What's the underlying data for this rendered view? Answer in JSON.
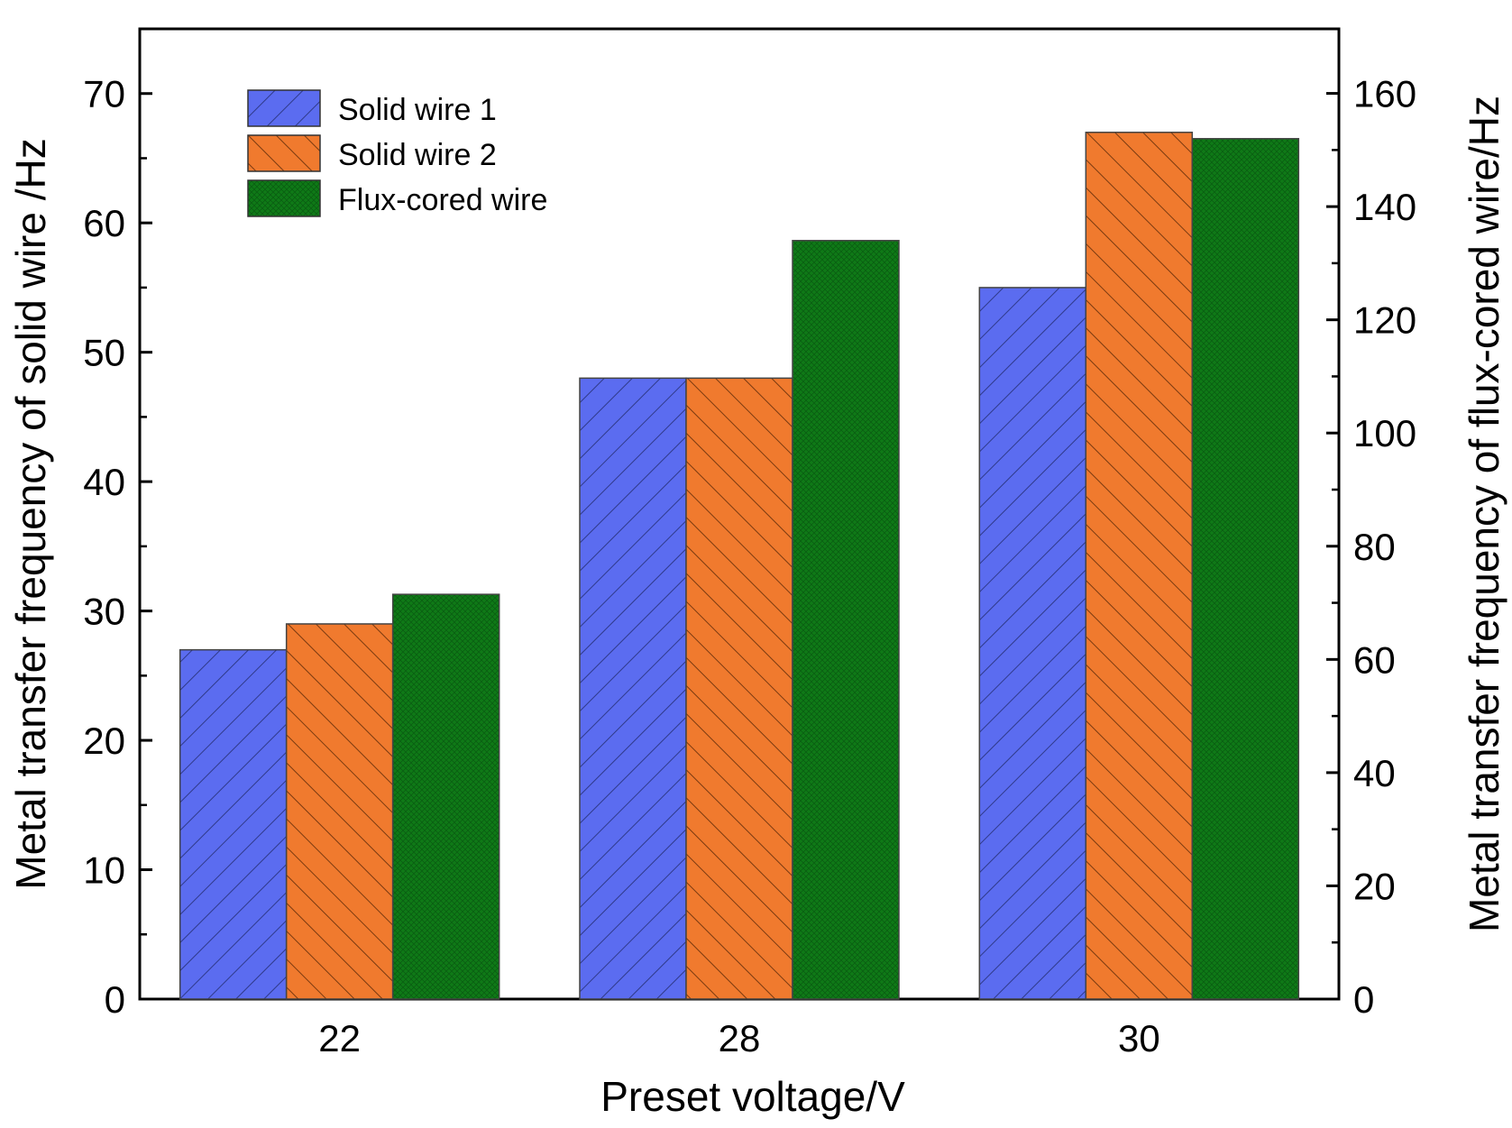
{
  "chart_data": {
    "type": "bar",
    "categories": [
      "22",
      "28",
      "30"
    ],
    "xlabel": "Preset voltage/V",
    "ylabel": "Metal transfer frequency of solid wire /Hz",
    "y2label": "Metal transfer frequency of flux-cored wire/Hz",
    "ylim": [
      0,
      75
    ],
    "y2lim": [
      0,
      171.4
    ],
    "yticks": [
      "0",
      "10",
      "20",
      "30",
      "40",
      "50",
      "60",
      "70"
    ],
    "y2ticks": [
      "0",
      "20",
      "40",
      "60",
      "80",
      "100",
      "120",
      "140",
      "160"
    ],
    "series": [
      {
        "name": "Solid wire 1",
        "axis": "left",
        "values": [
          27,
          48,
          55
        ],
        "color": "#5b6cf0",
        "hatch": "forward"
      },
      {
        "name": "Solid wire 2",
        "axis": "left",
        "values": [
          29,
          48,
          67
        ],
        "color": "#f07a2e",
        "hatch": "back"
      },
      {
        "name": "Flux-cored wire",
        "axis": "right",
        "values": [
          71.5,
          134,
          152
        ],
        "color": "#0f7a17",
        "hatch": "cross"
      }
    ],
    "legend_position": "top-left"
  }
}
